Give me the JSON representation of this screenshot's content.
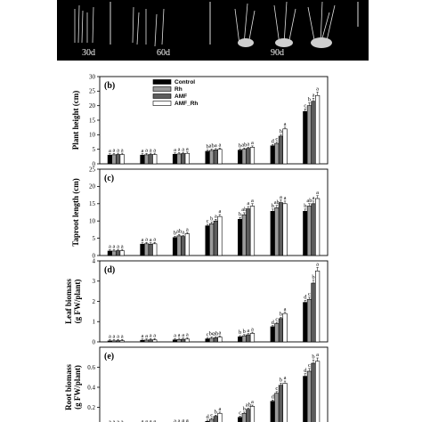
{
  "photo": {
    "labels": [
      "30d",
      "60d",
      "90d"
    ],
    "colors": {
      "background": "#000000",
      "plant": "#e8e8e8",
      "scale": "#dcdcdc"
    }
  },
  "legend": [
    "Control",
    "Rh",
    "AMF",
    "AMF_Rh"
  ],
  "series_fills": [
    "#000000",
    "#9a9a9a",
    "#5c5c5c",
    "#ffffff"
  ],
  "chart_data": [
    {
      "type": "bar",
      "panel": "(b)",
      "ylabel": [
        "Plant height (cm)"
      ],
      "ylim": [
        0,
        30
      ],
      "yticks": [
        0,
        5,
        10,
        15,
        20,
        25,
        30
      ],
      "groups": 7,
      "series": [
        {
          "name": "Control",
          "values": [
            3.0,
            3.0,
            3.3,
            4.3,
            4.7,
            6.2,
            18.0
          ]
        },
        {
          "name": "Rh",
          "values": [
            3.1,
            3.1,
            3.4,
            4.6,
            5.0,
            7.0,
            20.0
          ]
        },
        {
          "name": "AMF",
          "values": [
            3.2,
            3.2,
            3.5,
            4.8,
            5.3,
            9.5,
            21.5
          ]
        },
        {
          "name": "AMF_Rh",
          "values": [
            3.2,
            3.2,
            3.6,
            5.0,
            5.7,
            12.0,
            23.5
          ]
        }
      ],
      "letters": [
        [
          "a",
          "a",
          "a",
          "a"
        ],
        [
          "a",
          "a",
          "a",
          "a"
        ],
        [
          "a",
          "a",
          "a",
          "a"
        ],
        [
          "b",
          "ab",
          "a",
          "a"
        ],
        [
          "b",
          "ab",
          "a",
          "a"
        ],
        [
          "d",
          "c",
          "b",
          "a"
        ],
        [
          "c",
          "b",
          "a",
          "a"
        ]
      ]
    },
    {
      "type": "bar",
      "panel": "(c)",
      "ylabel": [
        "Taproot length (cm)"
      ],
      "ylim": [
        0,
        25
      ],
      "yticks": [
        0,
        5,
        10,
        15,
        20,
        25
      ],
      "groups": 7,
      "series": [
        {
          "name": "Control",
          "values": [
            1.3,
            3.3,
            5.2,
            8.6,
            10.5,
            12.8,
            12.8
          ]
        },
        {
          "name": "Rh",
          "values": [
            1.3,
            3.4,
            5.7,
            9.2,
            11.8,
            13.8,
            14.3
          ]
        },
        {
          "name": "AMF",
          "values": [
            1.4,
            3.3,
            5.5,
            10.0,
            13.5,
            15.3,
            15.0
          ]
        },
        {
          "name": "AMF_Rh",
          "values": [
            1.4,
            3.4,
            6.3,
            11.3,
            14.3,
            15.0,
            16.5
          ]
        }
      ],
      "letters": [
        [
          "a",
          "a",
          "a",
          "a"
        ],
        [
          "a",
          "a",
          "a",
          "a"
        ],
        [
          "b",
          "ab",
          "a",
          "a"
        ],
        [
          "c",
          "b",
          "a",
          "a"
        ],
        [
          "b",
          "ab",
          "a",
          "a"
        ],
        [
          "b",
          "ab",
          "a",
          "a"
        ],
        [
          "b",
          "ab",
          "a",
          "a"
        ]
      ]
    },
    {
      "type": "bar",
      "panel": "(d)",
      "ylabel": [
        "Leaf biomass",
        "(g FW/plant)"
      ],
      "ylim": [
        0,
        4
      ],
      "yticks": [
        0,
        1,
        2,
        3,
        4
      ],
      "groups": 7,
      "series": [
        {
          "name": "Control",
          "values": [
            0.05,
            0.08,
            0.1,
            0.15,
            0.25,
            0.75,
            1.95
          ]
        },
        {
          "name": "Rh",
          "values": [
            0.05,
            0.09,
            0.12,
            0.18,
            0.3,
            0.9,
            2.1
          ]
        },
        {
          "name": "AMF",
          "values": [
            0.06,
            0.1,
            0.13,
            0.2,
            0.35,
            1.15,
            2.9
          ]
        },
        {
          "name": "AMF_Rh",
          "values": [
            0.06,
            0.1,
            0.14,
            0.24,
            0.42,
            1.4,
            3.5
          ]
        }
      ],
      "letters": [
        [
          "a",
          "a",
          "a",
          "a"
        ],
        [
          "a",
          "a",
          "a",
          "a"
        ],
        [
          "a",
          "a",
          "a",
          "a"
        ],
        [
          "c",
          "bc",
          "ab",
          "a"
        ],
        [
          "b",
          "b",
          "a",
          "a"
        ],
        [
          "d",
          "c",
          "b",
          "a"
        ],
        [
          "d",
          "c",
          "b",
          "a"
        ]
      ]
    },
    {
      "type": "bar",
      "panel": "(e)",
      "ylabel": [
        "Root biomass",
        "(g FW/plant)"
      ],
      "ylim": [
        0,
        0.8
      ],
      "yticks": [
        0.2,
        0.4,
        0.6
      ],
      "ytick_labels": [
        "0.2",
        "0.4",
        "0.6"
      ],
      "groups": 7,
      "series": [
        {
          "name": "Control",
          "values": [
            0.01,
            0.015,
            0.02,
            0.06,
            0.1,
            0.26,
            0.51
          ]
        },
        {
          "name": "Rh",
          "values": [
            0.01,
            0.016,
            0.022,
            0.08,
            0.14,
            0.34,
            0.56
          ]
        },
        {
          "name": "AMF",
          "values": [
            0.012,
            0.017,
            0.024,
            0.11,
            0.18,
            0.42,
            0.64
          ]
        },
        {
          "name": "AMF_Rh",
          "values": [
            0.012,
            0.018,
            0.026,
            0.14,
            0.21,
            0.44,
            0.66
          ]
        }
      ],
      "letters": [
        [
          "a",
          "a",
          "a",
          "a"
        ],
        [
          "a",
          "a",
          "a",
          "a"
        ],
        [
          "a",
          "a",
          "a",
          "a"
        ],
        [
          "d",
          "c",
          "b",
          "a"
        ],
        [
          "c",
          "b",
          "ab",
          "a"
        ],
        [
          "d",
          "c",
          "b",
          "a"
        ],
        [
          "d",
          "c",
          "b",
          "a"
        ]
      ]
    }
  ]
}
